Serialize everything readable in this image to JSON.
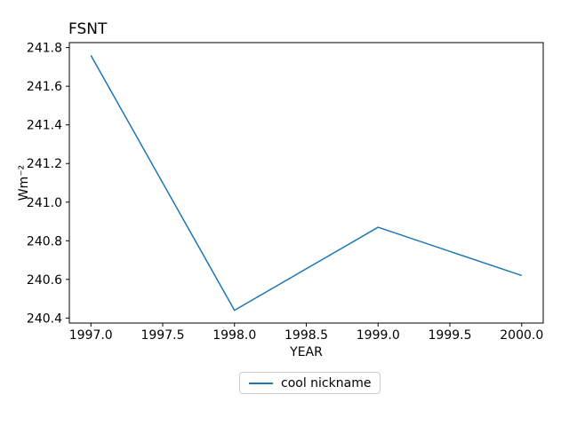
{
  "chart_data": {
    "type": "line",
    "title": "FSNT",
    "xlabel": "YEAR",
    "ylabel": "Wm⁻²",
    "x": [
      1997.0,
      1998.0,
      1999.0,
      2000.0
    ],
    "series": [
      {
        "name": "cool nickname",
        "values": [
          241.76,
          240.44,
          240.87,
          240.62
        ],
        "color": "#1f77b4"
      }
    ],
    "xlim": [
      1996.85,
      2000.15
    ],
    "ylim": [
      240.374,
      241.826
    ],
    "xticks": {
      "values": [
        1997.0,
        1997.5,
        1998.0,
        1998.5,
        1999.0,
        1999.5,
        2000.0
      ],
      "labels": [
        "1997.0",
        "1997.5",
        "1998.0",
        "1998.5",
        "1999.0",
        "1999.5",
        "2000.0"
      ]
    },
    "yticks": {
      "values": [
        240.4,
        240.6,
        240.8,
        241.0,
        241.2,
        241.4,
        241.6,
        241.8
      ],
      "labels": [
        "240.4",
        "240.6",
        "240.8",
        "241.0",
        "241.2",
        "241.4",
        "241.6",
        "241.8"
      ]
    },
    "grid": false,
    "legend": {
      "position": "bottom-center",
      "entries": [
        "cool nickname"
      ]
    }
  },
  "colors": {
    "line": "#1f77b4",
    "spine": "#000000",
    "text": "#000000",
    "legend_border": "#cccccc",
    "background": "#ffffff"
  }
}
